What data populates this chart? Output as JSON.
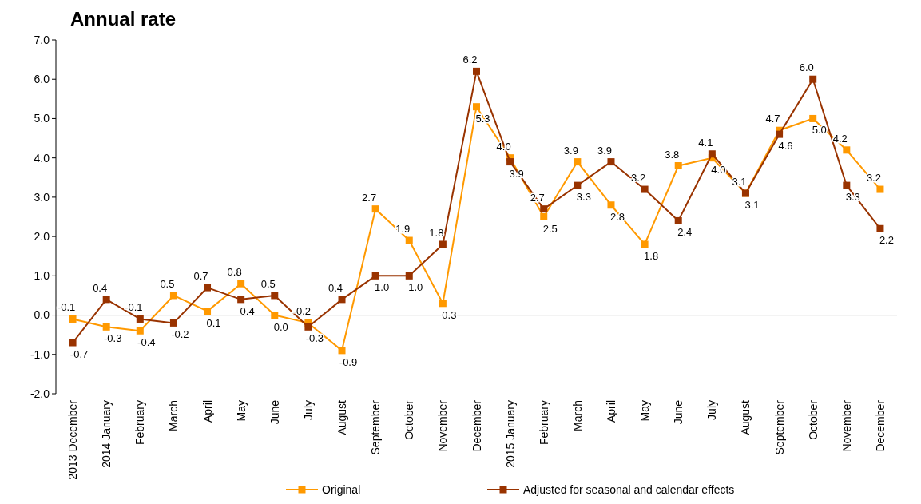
{
  "chart_data": {
    "type": "line",
    "title": "Annual rate",
    "categories": [
      "2013 December",
      "2014 January",
      "February",
      "March",
      "April",
      "May",
      "June",
      "July",
      "August",
      "September",
      "October",
      "November",
      "December",
      "2015 January",
      "February",
      "March",
      "April",
      "May",
      "June",
      "July",
      "August",
      "September",
      "October",
      "November",
      "December"
    ],
    "series": [
      {
        "name": "Original",
        "color": "#ff9900",
        "values": [
          -0.1,
          -0.3,
          -0.4,
          0.5,
          0.1,
          0.8,
          0.0,
          -0.2,
          -0.9,
          2.7,
          1.9,
          0.3,
          5.3,
          4.0,
          2.5,
          3.9,
          2.8,
          1.8,
          3.8,
          4.0,
          3.1,
          4.7,
          5.0,
          4.2,
          3.2
        ],
        "value_labels": [
          "-0.1",
          "-0.3",
          "-0.4",
          "0.5",
          "0.1",
          "0.8",
          "0.0",
          "-0.2",
          "-0.9",
          "2.7",
          "1.9",
          "0.3",
          "5.3",
          "4.0",
          "2.5",
          "3.9",
          "2.8",
          "1.8",
          "3.8",
          "4.0",
          "3.1",
          "4.7",
          "5.0",
          "4.2",
          "3.2"
        ]
      },
      {
        "name": "Adjusted for seasonal and calendar effects",
        "color": "#993300",
        "values": [
          -0.7,
          0.4,
          -0.1,
          -0.2,
          0.7,
          0.4,
          0.5,
          -0.3,
          0.4,
          1.0,
          1.0,
          1.8,
          6.2,
          3.9,
          2.7,
          3.3,
          3.9,
          3.2,
          2.4,
          4.1,
          3.1,
          4.6,
          6.0,
          3.3,
          2.2
        ],
        "value_labels": [
          "-0.7",
          "0.4",
          "-0.1",
          "-0.2",
          "0.7",
          "0.4",
          "0.5",
          "-0.3",
          "0.4",
          "1.0",
          "1.0",
          "1.8",
          "6.2",
          "3.9",
          "2.7",
          "3.3",
          "3.9",
          "3.2",
          "2.4",
          "4.1",
          "3.1",
          "4.6",
          "6.0",
          "3.3",
          "2.2"
        ]
      }
    ],
    "ylim": [
      -2,
      7
    ],
    "yticks": [
      {
        "value": -2,
        "label": "-2.0"
      },
      {
        "value": -1,
        "label": "-1.0"
      },
      {
        "value": 0,
        "label": "0.0"
      },
      {
        "value": 1,
        "label": "1.0"
      },
      {
        "value": 2,
        "label": "2.0"
      },
      {
        "value": 3,
        "label": "3.0"
      },
      {
        "value": 4,
        "label": "4.0"
      },
      {
        "value": 5,
        "label": "5.0"
      },
      {
        "value": 6,
        "label": "6.0"
      },
      {
        "value": 7,
        "label": "7.0"
      }
    ],
    "marker": "square",
    "legend": "bottom"
  }
}
